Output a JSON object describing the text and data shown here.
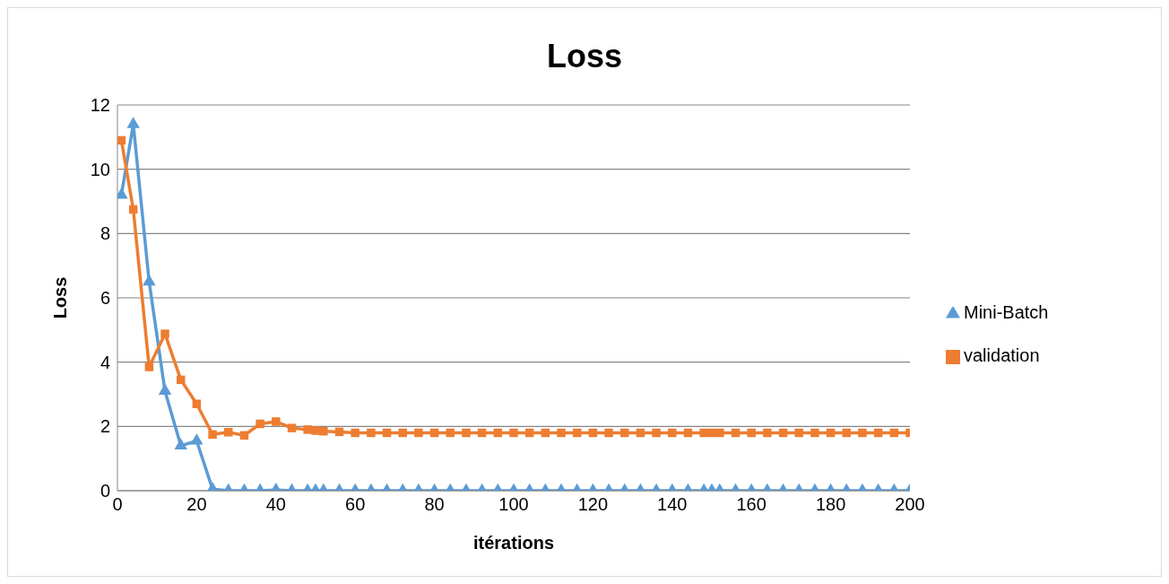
{
  "chart_data": {
    "type": "line",
    "title": "Loss",
    "xlabel": "itérations",
    "ylabel": "Loss",
    "xlim": [
      0,
      200
    ],
    "xticks": [
      0,
      20,
      40,
      60,
      80,
      100,
      120,
      140,
      160,
      180,
      200
    ],
    "ylim": [
      0,
      12
    ],
    "yticks": [
      0,
      2,
      4,
      6,
      8,
      10,
      12
    ],
    "grid": "y",
    "legend": "right",
    "series": [
      {
        "name": "Mini-Batch",
        "color": "#5b9bd5",
        "marker": "triangle",
        "x": [
          1,
          4,
          8,
          12,
          16,
          20,
          24,
          28,
          32,
          36,
          40,
          44,
          48,
          50,
          52,
          56,
          60,
          64,
          68,
          72,
          76,
          80,
          84,
          88,
          92,
          96,
          100,
          104,
          108,
          112,
          116,
          120,
          124,
          128,
          132,
          136,
          140,
          144,
          148,
          150,
          152,
          156,
          160,
          164,
          168,
          172,
          176,
          180,
          184,
          188,
          192,
          196,
          200
        ],
        "values": [
          9.2,
          11.4,
          6.5,
          3.1,
          1.4,
          1.55,
          0.05,
          0,
          0,
          0,
          0.02,
          0,
          0,
          0,
          0,
          0,
          0,
          0,
          0,
          0,
          0,
          0,
          0,
          0,
          0,
          0,
          0,
          0,
          0,
          0,
          0,
          0,
          0,
          0,
          0,
          0,
          0,
          0,
          0,
          0,
          0,
          0,
          0,
          0,
          0,
          0,
          0,
          0,
          0,
          0,
          0,
          0,
          0
        ]
      },
      {
        "name": "validation",
        "color": "#ed7d31",
        "marker": "square",
        "x": [
          1,
          4,
          8,
          12,
          16,
          20,
          24,
          28,
          32,
          36,
          40,
          44,
          48,
          50,
          52,
          56,
          60,
          64,
          68,
          72,
          76,
          80,
          84,
          88,
          92,
          96,
          100,
          104,
          108,
          112,
          116,
          120,
          124,
          128,
          132,
          136,
          140,
          144,
          148,
          150,
          152,
          156,
          160,
          164,
          168,
          172,
          176,
          180,
          184,
          188,
          192,
          196,
          200
        ],
        "values": [
          10.9,
          8.75,
          3.85,
          4.88,
          3.45,
          2.7,
          1.75,
          1.82,
          1.72,
          2.08,
          2.15,
          1.95,
          1.9,
          1.87,
          1.85,
          1.83,
          1.8,
          1.8,
          1.8,
          1.8,
          1.8,
          1.8,
          1.8,
          1.8,
          1.8,
          1.8,
          1.8,
          1.8,
          1.8,
          1.8,
          1.8,
          1.8,
          1.8,
          1.8,
          1.8,
          1.8,
          1.8,
          1.8,
          1.8,
          1.8,
          1.8,
          1.8,
          1.8,
          1.8,
          1.8,
          1.8,
          1.8,
          1.8,
          1.8,
          1.8,
          1.8,
          1.8,
          1.8
        ]
      }
    ]
  }
}
